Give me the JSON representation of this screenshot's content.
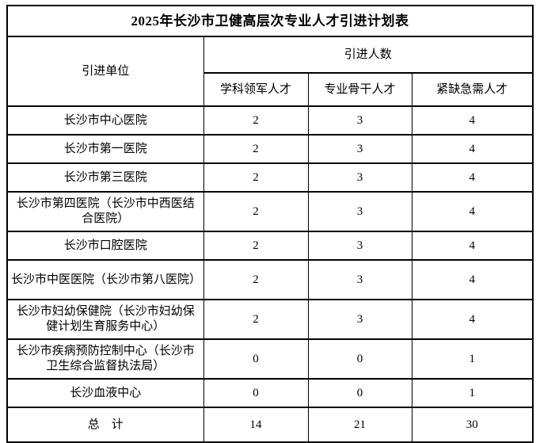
{
  "title": "2025年长沙市卫健高层次专业人才引进计划表",
  "table": {
    "header": {
      "unit": "引进单位",
      "group": "引进人数",
      "col_leader": "学科领军人才",
      "col_backbone": "专业骨干人才",
      "col_urgent": "紧缺急需人才"
    },
    "rows": [
      {
        "unit": "长沙市中心医院",
        "leader": "2",
        "backbone": "3",
        "urgent": "4"
      },
      {
        "unit": "长沙市第一医院",
        "leader": "2",
        "backbone": "3",
        "urgent": "4"
      },
      {
        "unit": "长沙市第三医院",
        "leader": "2",
        "backbone": "3",
        "urgent": "4"
      },
      {
        "unit": "长沙市第四医院（长沙市中西医结合医院）",
        "leader": "2",
        "backbone": "3",
        "urgent": "4"
      },
      {
        "unit": "长沙市口腔医院",
        "leader": "2",
        "backbone": "3",
        "urgent": "4"
      },
      {
        "unit": "长沙市中医医院（长沙市第八医院）",
        "leader": "2",
        "backbone": "3",
        "urgent": "4"
      },
      {
        "unit": "长沙市妇幼保健院（长沙市妇幼保健计划生育服务中心）",
        "leader": "2",
        "backbone": "3",
        "urgent": "4"
      },
      {
        "unit": "长沙市疾病预防控制中心（长沙市卫生综合监督执法局）",
        "leader": "0",
        "backbone": "0",
        "urgent": "1"
      },
      {
        "unit": "长沙血液中心",
        "leader": "0",
        "backbone": "0",
        "urgent": "1"
      }
    ],
    "total": {
      "label": "总　计",
      "leader": "14",
      "backbone": "21",
      "urgent": "30"
    }
  },
  "chart_data": {
    "type": "table",
    "title": "2025年长沙市卫健高层次专业人才引进计划表",
    "columns": [
      "引进单位",
      "学科领军人才",
      "专业骨干人才",
      "紧缺急需人才"
    ],
    "rows": [
      [
        "长沙市中心医院",
        2,
        3,
        4
      ],
      [
        "长沙市第一医院",
        2,
        3,
        4
      ],
      [
        "长沙市第三医院",
        2,
        3,
        4
      ],
      [
        "长沙市第四医院（长沙市中西医结合医院）",
        2,
        3,
        4
      ],
      [
        "长沙市口腔医院",
        2,
        3,
        4
      ],
      [
        "长沙市中医医院（长沙市第八医院）",
        2,
        3,
        4
      ],
      [
        "长沙市妇幼保健院（长沙市妇幼保健计划生育服务中心）",
        2,
        3,
        4
      ],
      [
        "长沙市疾病预防控制中心（长沙市卫生综合监督执法局）",
        0,
        0,
        1
      ],
      [
        "长沙血液中心",
        0,
        0,
        1
      ],
      [
        "总　计",
        14,
        21,
        30
      ]
    ]
  },
  "colors": {
    "border": "#000000",
    "text": "#000000",
    "page_background": "#ffffff"
  }
}
